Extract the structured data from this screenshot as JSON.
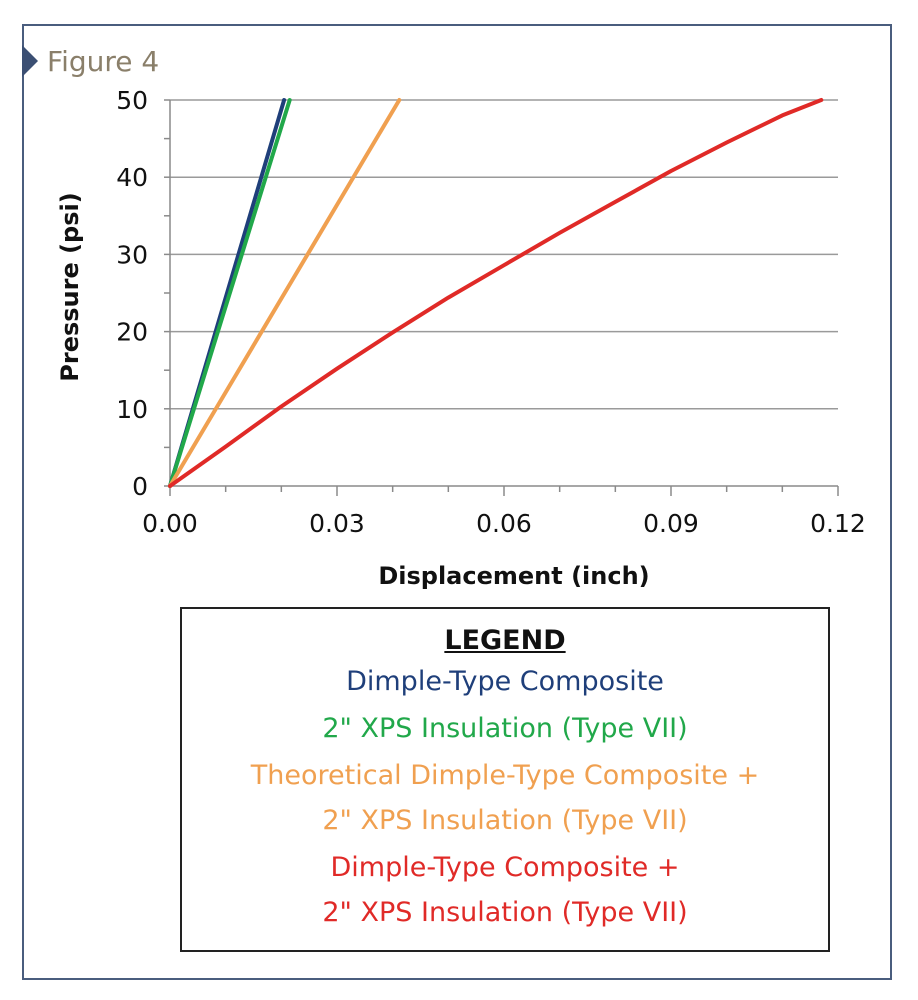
{
  "figure_label": "Figure 4",
  "chart_data": {
    "type": "line",
    "xlabel": "Displacement (inch)",
    "ylabel": "Pressure (psi)",
    "xlim": [
      0,
      0.12
    ],
    "ylim": [
      0,
      50
    ],
    "x_ticks": [
      "0.00",
      "0.03",
      "0.06",
      "0.09",
      "0.12"
    ],
    "x_tick_values": [
      0,
      0.03,
      0.06,
      0.09,
      0.12
    ],
    "y_ticks": [
      "0",
      "10",
      "20",
      "30",
      "40",
      "50"
    ],
    "y_tick_values": [
      0,
      10,
      20,
      30,
      40,
      50
    ],
    "grid": "horizontal",
    "series": [
      {
        "name": "Dimple-Type Composite",
        "color": "#1f3f7a",
        "x": [
          0,
          0.0205
        ],
        "y": [
          0,
          50
        ]
      },
      {
        "name": "2\" XPS Insulation (Type VII)",
        "color": "#21a84a",
        "x": [
          0,
          0.0215
        ],
        "y": [
          0,
          50
        ]
      },
      {
        "name": "Theoretical Dimple-Type Composite + 2\" XPS Insulation (Type VII)",
        "color": "#f0a050",
        "x": [
          0,
          0.0412
        ],
        "y": [
          0,
          50
        ]
      },
      {
        "name": "Dimple-Type Composite + 2\" XPS Insulation (Type VII)",
        "color": "#e02a27",
        "x": [
          0,
          0.01,
          0.02,
          0.03,
          0.04,
          0.05,
          0.06,
          0.07,
          0.08,
          0.09,
          0.1,
          0.11,
          0.117
        ],
        "y": [
          0,
          5.1,
          10.3,
          15.2,
          19.9,
          24.4,
          28.6,
          32.8,
          36.8,
          40.8,
          44.5,
          48.0,
          50
        ]
      }
    ]
  },
  "legend": {
    "heading": "LEGEND",
    "items": [
      {
        "lines": [
          "Dimple-Type Composite"
        ],
        "color": "#1f3f7a"
      },
      {
        "lines": [
          "2\" XPS Insulation (Type VII)"
        ],
        "color": "#21a84a"
      },
      {
        "lines": [
          "Theoretical Dimple-Type Composite +",
          "2\" XPS Insulation (Type VII)"
        ],
        "color": "#f0a050"
      },
      {
        "lines": [
          "Dimple-Type Composite +",
          "2\" XPS Insulation (Type VII)"
        ],
        "color": "#e02a27"
      }
    ]
  }
}
